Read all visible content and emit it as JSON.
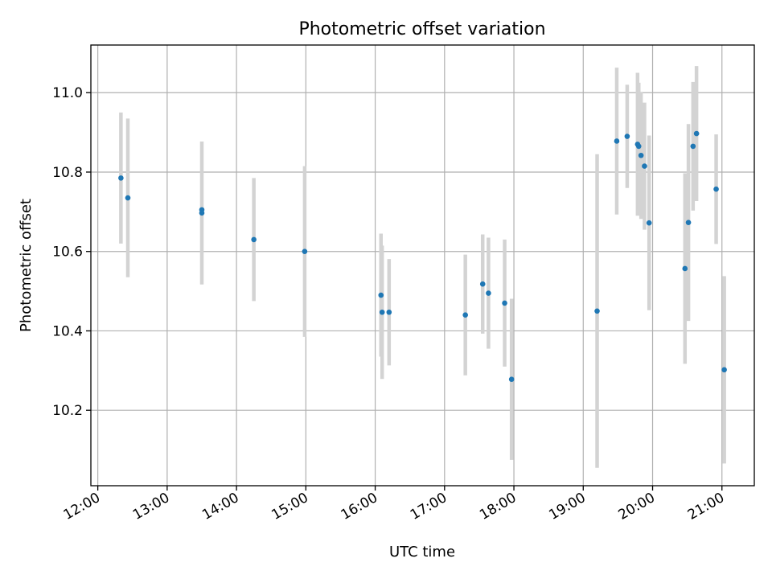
{
  "chart_data": {
    "type": "scatter",
    "title": "Photometric offset variation",
    "xlabel": "UTC time",
    "ylabel": "Photometric offset",
    "xlim": [
      "11:54",
      "21:28"
    ],
    "ylim": [
      10.01,
      11.12
    ],
    "grid": true,
    "x_ticks": [
      "12:00",
      "13:00",
      "14:00",
      "15:00",
      "16:00",
      "17:00",
      "18:00",
      "19:00",
      "20:00",
      "21:00"
    ],
    "y_ticks": [
      10.2,
      10.4,
      10.6,
      10.8,
      11.0
    ],
    "y_tick_labels": [
      "10.2",
      "10.4",
      "10.6",
      "10.8",
      "11.0"
    ],
    "point_color": "#1f77b4",
    "errorbar_color": "#d3d3d3",
    "series": [
      {
        "x": [
          "12:20",
          "12:26",
          "13:30",
          "13:30",
          "14:15",
          "14:59",
          "16:05",
          "16:06",
          "16:12",
          "17:18",
          "17:33",
          "17:38",
          "17:52",
          "17:58",
          "19:12",
          "19:29",
          "19:38",
          "19:47",
          "19:48",
          "19:50",
          "19:53",
          "19:57",
          "20:28",
          "20:31",
          "20:35",
          "20:38",
          "20:55",
          "21:02"
        ],
        "y": [
          10.785,
          10.735,
          10.705,
          10.697,
          10.63,
          10.6,
          10.49,
          10.447,
          10.447,
          10.44,
          10.518,
          10.495,
          10.47,
          10.278,
          10.45,
          10.878,
          10.89,
          10.87,
          10.865,
          10.842,
          10.815,
          10.672,
          10.557,
          10.673,
          10.865,
          10.897,
          10.757,
          10.302
        ],
        "yerr": [
          0.165,
          0.2,
          0.0,
          0.18,
          0.155,
          0.215,
          0.155,
          0.168,
          0.134,
          0.152,
          0.125,
          0.14,
          0.16,
          0.203,
          0.395,
          0.185,
          0.13,
          0.18,
          0.16,
          0.16,
          0.16,
          0.22,
          0.24,
          0.248,
          0.162,
          0.17,
          0.138,
          0.236
        ]
      }
    ]
  }
}
